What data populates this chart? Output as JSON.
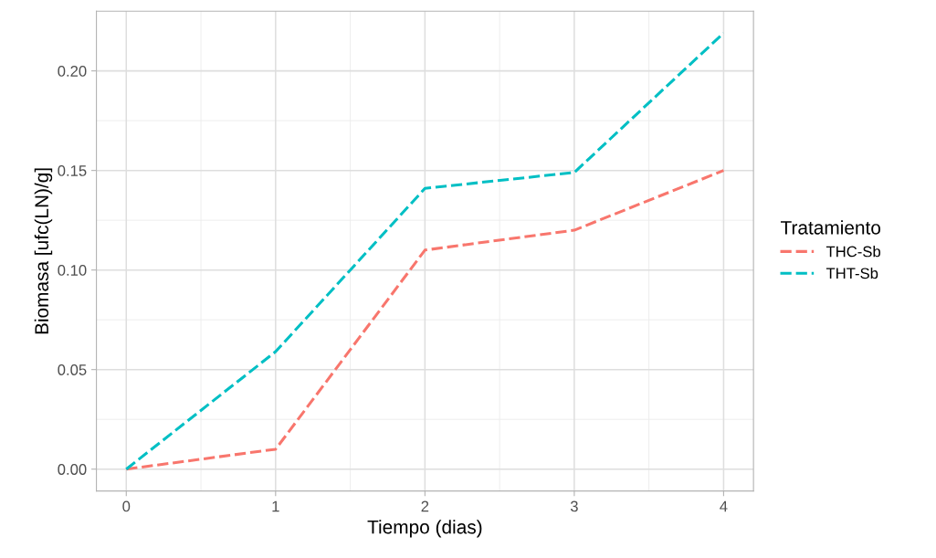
{
  "chart_data": {
    "type": "line",
    "xlabel": "Tiempo (dias)",
    "ylabel": "Biomasa [ufc(LN)/g]",
    "legend_title": "Tratamiento",
    "x": [
      0,
      1,
      2,
      3,
      4
    ],
    "series": [
      {
        "name": "THC-Sb",
        "color": "#f8766d",
        "values": [
          0,
          0.01,
          0.11,
          0.12,
          0.15
        ]
      },
      {
        "name": "THT-Sb",
        "color": "#00bfc4",
        "values": [
          0,
          0.059,
          0.141,
          0.149,
          0.219
        ]
      }
    ],
    "xlim": [
      -0.2,
      4.2
    ],
    "xticks": [
      0,
      1,
      2,
      3,
      4
    ],
    "ylim": [
      -0.011,
      0.23
    ],
    "yticks": [
      {
        "value": 0,
        "label": "0.00"
      },
      {
        "value": 0.05,
        "label": "0.05"
      },
      {
        "value": 0.1,
        "label": "0.10"
      },
      {
        "value": 0.15,
        "label": "0.15"
      },
      {
        "value": 0.2,
        "label": "0.20"
      }
    ],
    "grid": true,
    "legend": "right",
    "line_style": "dashed",
    "marker": "none"
  }
}
